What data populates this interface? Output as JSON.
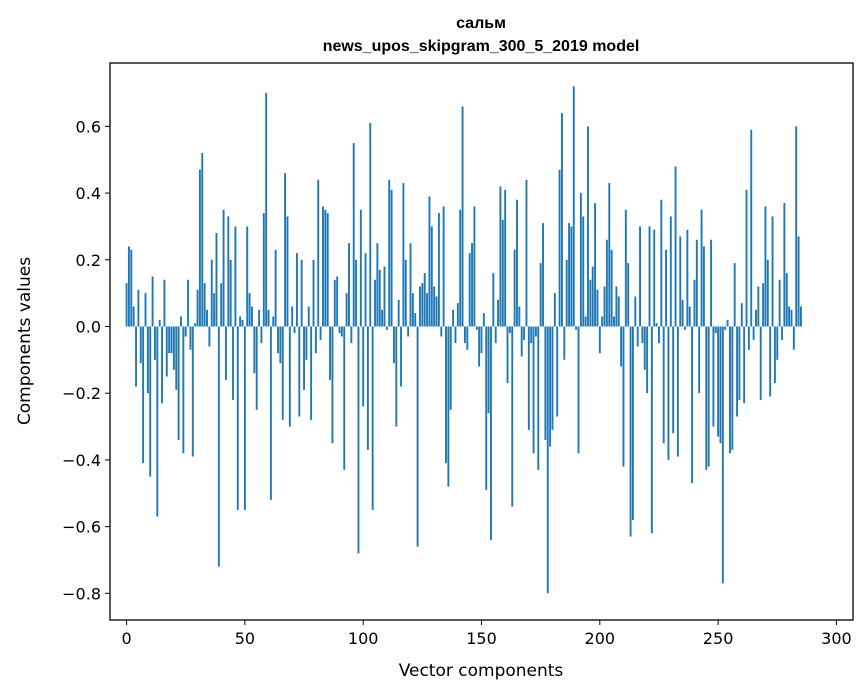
{
  "chart_data": {
    "type": "bar",
    "title": "сальм",
    "subtitle": "news_upos_skipgram_300_5_2019 model",
    "xlabel": "Vector components",
    "ylabel": "Components values",
    "xlim": [
      -7,
      307
    ],
    "ylim": [
      -0.88,
      0.79
    ],
    "xticks": [
      0,
      50,
      100,
      150,
      200,
      250,
      300
    ],
    "xtick_labels": [
      "0",
      "50",
      "100",
      "150",
      "200",
      "250",
      "300"
    ],
    "yticks": [
      -0.8,
      -0.6,
      -0.4,
      -0.2,
      0.0,
      0.2,
      0.4,
      0.6
    ],
    "ytick_labels": [
      "−0.8",
      "−0.6",
      "−0.4",
      "−0.2",
      "0.0",
      "0.2",
      "0.4",
      "0.6"
    ],
    "bar_color": "#1f77b4",
    "series": [
      {
        "name": "сальм",
        "values": [
          0.13,
          0.24,
          0.23,
          0.06,
          -0.18,
          0.11,
          -0.11,
          -0.41,
          0.1,
          -0.2,
          -0.45,
          0.15,
          -0.1,
          -0.57,
          0.02,
          -0.23,
          0.14,
          -0.15,
          -0.08,
          -0.08,
          -0.13,
          -0.19,
          -0.34,
          0.03,
          -0.38,
          -0.03,
          0.14,
          -0.07,
          -0.39,
          0.01,
          0.11,
          0.47,
          0.52,
          0.13,
          0.05,
          -0.06,
          0.2,
          0.1,
          0.28,
          -0.72,
          0.13,
          0.35,
          -0.16,
          0.33,
          0.2,
          -0.22,
          0.3,
          -0.55,
          0.03,
          0.02,
          -0.55,
          0.3,
          0.1,
          0.06,
          -0.14,
          -0.25,
          0.05,
          -0.05,
          0.34,
          0.7,
          0.05,
          -0.52,
          0.03,
          0.23,
          -0.08,
          -0.11,
          -0.28,
          0.46,
          0.33,
          -0.3,
          0.06,
          -0.02,
          0.22,
          -0.27,
          0.2,
          -0.19,
          -0.1,
          0.06,
          -0.28,
          0.2,
          -0.08,
          0.44,
          -0.04,
          0.36,
          0.35,
          0.34,
          -0.16,
          -0.35,
          0.14,
          0.15,
          -0.02,
          -0.03,
          -0.43,
          0.1,
          0.25,
          -0.05,
          0.55,
          0.2,
          -0.68,
          0.35,
          -0.24,
          0.22,
          -0.37,
          0.61,
          -0.55,
          0.14,
          0.25,
          0.17,
          0.05,
          0.18,
          -0.01,
          0.44,
          0.41,
          -0.11,
          -0.3,
          0.08,
          -0.18,
          0.43,
          0.2,
          -0.03,
          0.25,
          0.1,
          0.04,
          -0.66,
          0.12,
          0.13,
          0.16,
          0.1,
          0.39,
          0.3,
          0.12,
          0.09,
          0.34,
          -0.03,
          0.36,
          -0.41,
          -0.48,
          -0.25,
          0.05,
          -0.05,
          0.07,
          0.35,
          0.66,
          -0.05,
          -0.07,
          0.22,
          0.25,
          0.36,
          -0.01,
          -0.12,
          -0.08,
          0.04,
          -0.49,
          -0.26,
          -0.64,
          0.16,
          -0.05,
          0.08,
          0.42,
          0.32,
          0.41,
          -0.17,
          -0.02,
          -0.54,
          0.23,
          0.38,
          0.06,
          -0.09,
          -0.04,
          0.44,
          -0.31,
          -0.05,
          -0.38,
          -0.03,
          -0.43,
          0.19,
          0.31,
          -0.34,
          -0.8,
          -0.36,
          -0.31,
          0.1,
          -0.27,
          0.47,
          0.64,
          -0.1,
          0.2,
          0.31,
          0.3,
          0.72,
          -0.01,
          -0.38,
          0.4,
          0.33,
          0.03,
          0.6,
          0.14,
          0.18,
          0.37,
          0.11,
          -0.08,
          0.03,
          0.12,
          0.26,
          0.43,
          0.23,
          0.03,
          0.12,
          0.09,
          -0.12,
          -0.42,
          0.35,
          0.19,
          -0.63,
          -0.58,
          0.09,
          -0.06,
          0.3,
          -0.05,
          -0.13,
          -0.2,
          0.3,
          -0.62,
          0.29,
          0.01,
          -0.05,
          0.38,
          -0.35,
          0.23,
          -0.4,
          0.33,
          -0.32,
          0.48,
          -0.39,
          0.27,
          0.08,
          -0.01,
          0.29,
          0.06,
          -0.47,
          0.14,
          0.26,
          -0.2,
          0.35,
          0.24,
          -0.43,
          -0.42,
          0.26,
          -0.3,
          -0.02,
          -0.33,
          -0.35,
          -0.77,
          -0.01,
          0.02,
          -0.38,
          -0.37,
          0.19,
          -0.27,
          -0.22,
          0.07,
          -0.23,
          0.41,
          -0.07,
          0.59,
          -0.04,
          0.05,
          0.12,
          -0.22,
          0.13,
          0.36,
          0.2,
          -0.21,
          0.33,
          -0.17,
          -0.1,
          0.14,
          -0.04,
          0.37,
          0.16,
          0.06,
          0.05,
          -0.07,
          0.6,
          0.27,
          0.06
        ]
      }
    ]
  }
}
